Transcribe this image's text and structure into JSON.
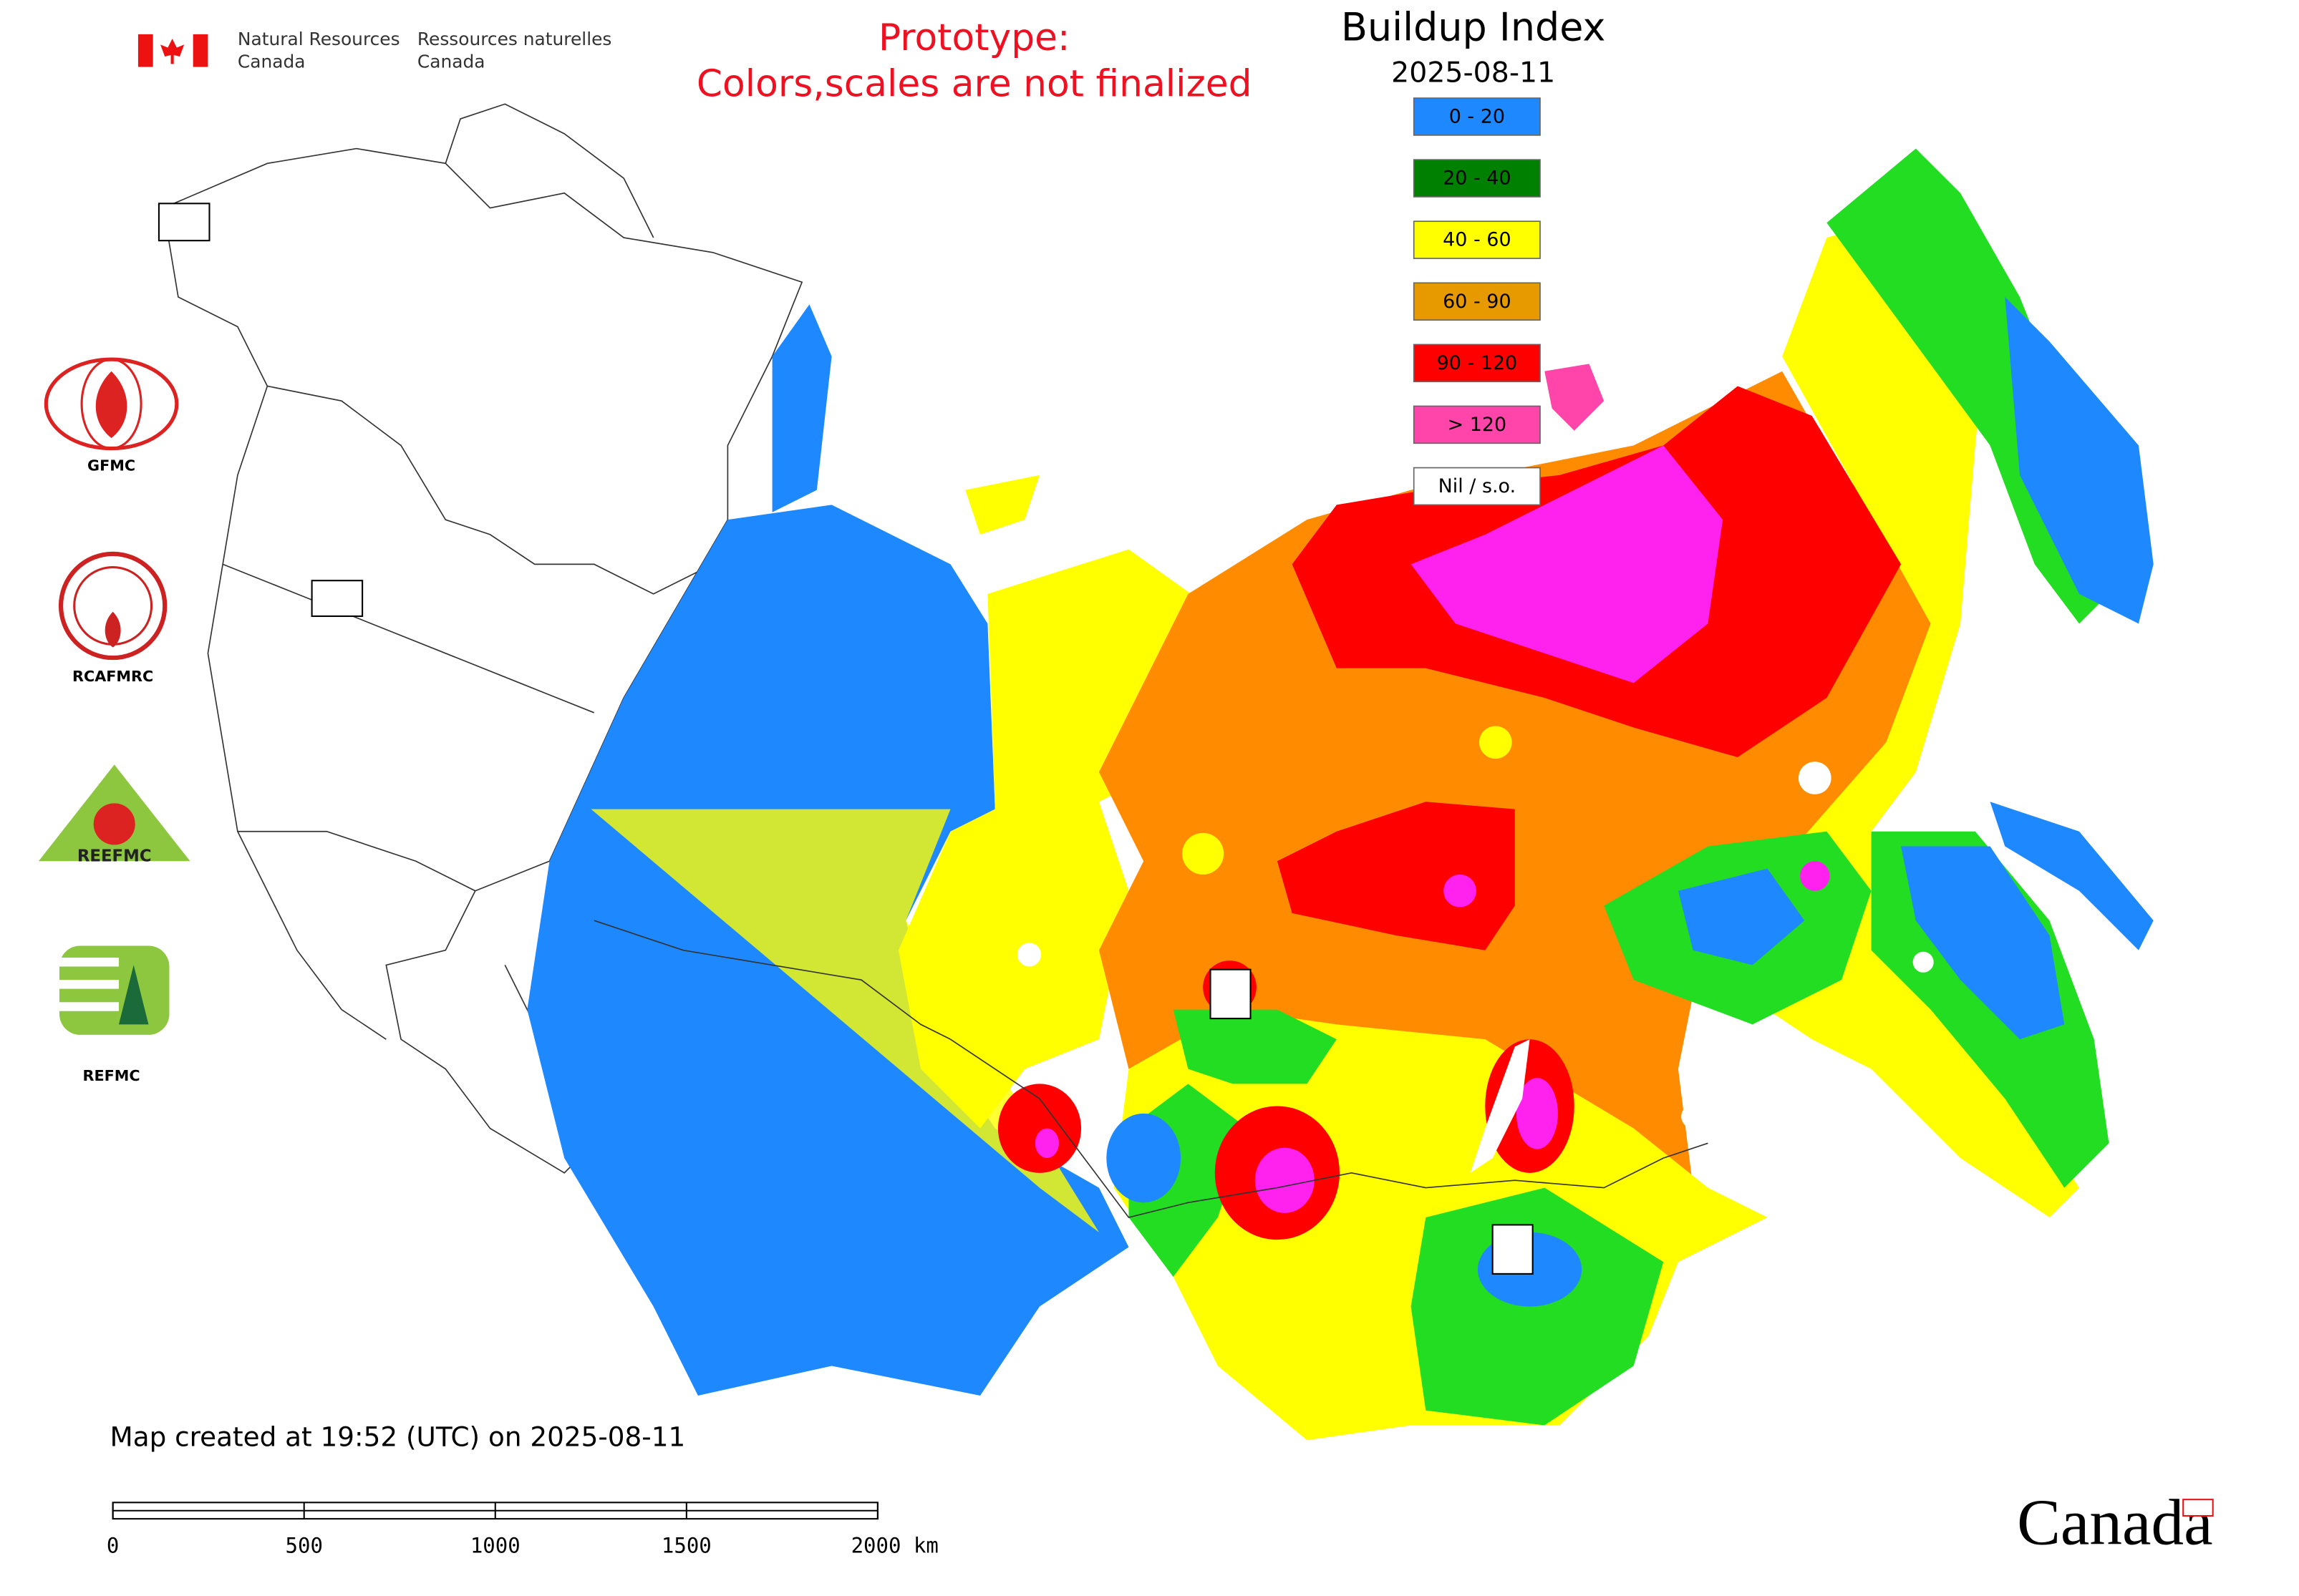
{
  "header": {
    "agency_en_1": "Natural Resources",
    "agency_en_2": "Canada",
    "agency_fr_1": "Ressources naturelles",
    "agency_fr_2": "Canada"
  },
  "notice": {
    "line1": "Prototype:",
    "line2": "Colors,scales are not finalized"
  },
  "title": "Buildup Index",
  "date": "2025-08-11",
  "legend": [
    {
      "label": "0 - 20",
      "color": "#1e88ff"
    },
    {
      "label": "20 - 40",
      "color": "#008000"
    },
    {
      "label": "40 - 60",
      "color": "#ffff00"
    },
    {
      "label": "60 - 90",
      "color": "#e69a00"
    },
    {
      "label": "90 - 120",
      "color": "#ff0000"
    },
    {
      "label": "> 120",
      "color": "#ff44aa"
    },
    {
      "label": "Nil / s.o.",
      "color": "#ffffff"
    }
  ],
  "logos": {
    "gfmc": "GFMC",
    "rcafmrc": "RCAFMRC",
    "reefmc": "REEFMC",
    "refmc": "REFMC"
  },
  "footer": "Map created at 19:52 (UTC) on 2025-08-11",
  "scale_bar": [
    "0",
    "500",
    "1000",
    "1500",
    "2000 km"
  ],
  "wordmark": "Canada"
}
